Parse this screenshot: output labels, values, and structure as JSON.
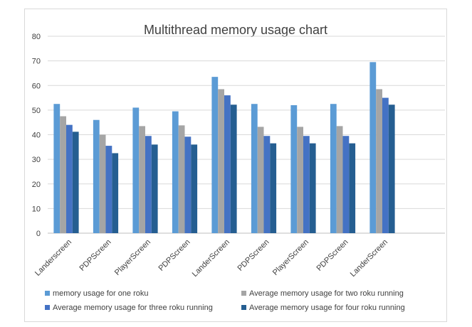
{
  "chart_data": {
    "type": "bar",
    "title": "Multithread memory usage chart",
    "xlabel": "",
    "ylabel": "",
    "ylim": [
      0,
      80
    ],
    "yticks": [
      0,
      10,
      20,
      30,
      40,
      50,
      60,
      70,
      80
    ],
    "grid": true,
    "legend_position": "bottom",
    "categories": [
      "Landerscreen",
      "PDPScreen",
      "PlayerScreen",
      "PDPScreen",
      "LanderScreen",
      "PDPScreen",
      "PlayerScreen",
      "PDPScreen",
      "LanderScreen"
    ],
    "series": [
      {
        "name": "memory usage for one roku",
        "color": "#5B9BD5",
        "values": [
          52.5,
          46,
          51,
          49.5,
          63.5,
          52.5,
          52,
          52.5,
          69.5
        ]
      },
      {
        "name": "Average memory usage for two roku running",
        "color": "#A5A5A5",
        "values": [
          47.5,
          40,
          43.5,
          43.8,
          58.5,
          43.2,
          43.2,
          43.5,
          58.5
        ]
      },
      {
        "name": "Average memory usage for three roku running",
        "color": "#4472C4",
        "values": [
          44,
          35.5,
          39.5,
          39.2,
          56,
          39.5,
          39.5,
          39.5,
          55
        ]
      },
      {
        "name": "Average memory usage for four roku running",
        "color": "#255E91",
        "values": [
          41.2,
          32.5,
          36,
          36,
          52.2,
          36.5,
          36.5,
          36.5,
          52.2
        ]
      }
    ]
  }
}
